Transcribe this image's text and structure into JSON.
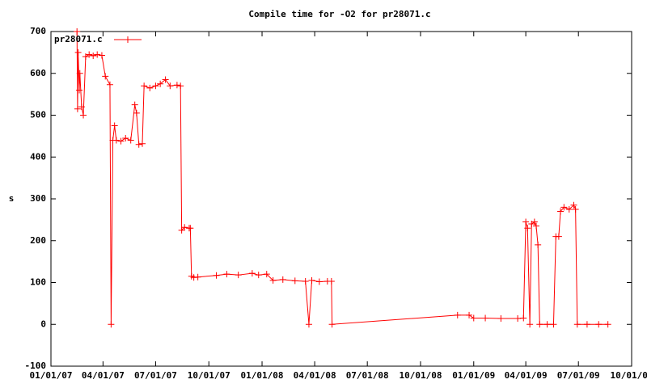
{
  "chart_data": {
    "type": "line",
    "title": "Compile time for -O2 for pr28071.c",
    "y_label": "s",
    "x": [
      "02/15/07",
      "02/16/07",
      "02/17/07",
      "02/19/07",
      "02/20/07",
      "02/23/07",
      "02/26/07",
      "03/02/07",
      "03/08/07",
      "03/15/07",
      "03/22/07",
      "03/30/07",
      "04/05/07",
      "04/13/07",
      "04/15/07",
      "04/18/07",
      "04/21/07",
      "04/24/07",
      "05/02/07",
      "05/10/07",
      "05/19/07",
      "05/26/07",
      "05/29/07",
      "06/02/07",
      "06/08/07",
      "06/11/07",
      "06/21/07",
      "07/01/07",
      "07/09/07",
      "07/18/07",
      "07/26/07",
      "08/07/07",
      "08/13/07",
      "08/15/07",
      "08/20/07",
      "08/28/07",
      "08/30/07",
      "09/01/07",
      "09/05/07",
      "09/12/07",
      "10/14/07",
      "11/01/07",
      "11/21/07",
      "12/15/07",
      "12/26/07",
      "01/09/08",
      "01/20/08",
      "02/06/08",
      "02/27/08",
      "03/16/08",
      "03/22/08",
      "03/27/08",
      "04/09/08",
      "04/23/08",
      "04/30/08",
      "05/01/08",
      "12/04/08",
      "12/24/08",
      "01/01/09",
      "01/21/09",
      "02/17/09",
      "03/18/09",
      "03/28/09",
      "04/01/09",
      "04/04/09",
      "04/08/09",
      "04/11/09",
      "04/16/09",
      "04/19/09",
      "04/22/09",
      "04/25/09",
      "05/08/09",
      "05/19/09",
      "05/23/09",
      "05/28/09",
      "05/31/09",
      "06/06/09",
      "06/15/09",
      "06/23/09",
      "06/26/09",
      "06/29/09",
      "07/16/09",
      "08/05/09",
      "08/21/09"
    ],
    "series": [
      {
        "name": "pr28071.c",
        "color": "#ff0000",
        "values": [
          700,
          515,
          650,
          560,
          600,
          520,
          500,
          640,
          645,
          642,
          645,
          643,
          593,
          573,
          0,
          440,
          475,
          440,
          438,
          445,
          440,
          525,
          505,
          430,
          432,
          570,
          565,
          570,
          575,
          585,
          570,
          572,
          570,
          225,
          232,
          230,
          230,
          115,
          112,
          113,
          117,
          120,
          118,
          122,
          118,
          120,
          105,
          107,
          104,
          103,
          0,
          105,
          102,
          103,
          103,
          0,
          22,
          22,
          15,
          15,
          14,
          14,
          15,
          245,
          230,
          0,
          240,
          245,
          235,
          190,
          0,
          0,
          0,
          210,
          210,
          270,
          280,
          275,
          285,
          275,
          0,
          0,
          0,
          0
        ]
      }
    ],
    "xlim": [
      "01/01/07",
      "10/01/09"
    ],
    "xticks": [
      "01/01/07",
      "04/01/07",
      "07/01/07",
      "10/01/07",
      "01/01/08",
      "04/01/08",
      "07/01/08",
      "10/01/08",
      "01/01/09",
      "04/01/09",
      "07/01/09",
      "10/01/09"
    ],
    "ylim": [
      -100,
      700
    ],
    "yticks": [
      -100,
      0,
      100,
      200,
      300,
      400,
      500,
      600,
      700
    ],
    "grid": false,
    "legend": "top-left"
  }
}
